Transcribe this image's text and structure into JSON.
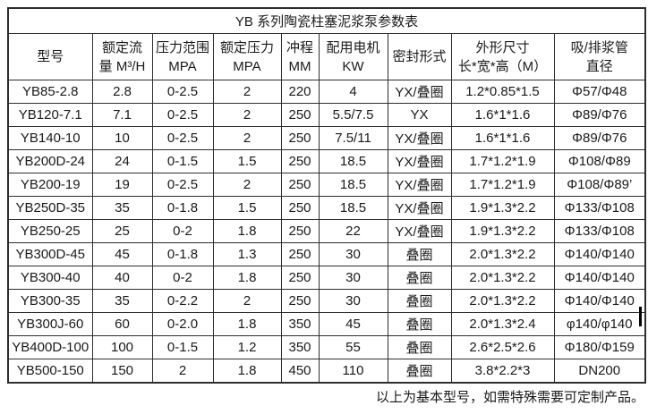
{
  "colors": {
    "border": "#2e2e2e",
    "text": "#1a1a1a",
    "background": "#ffffff"
  },
  "table": {
    "title": "YB 系列陶瓷柱塞泥浆泵参数表",
    "headers": [
      {
        "line1": "型号",
        "line2": ""
      },
      {
        "line1": "额定流",
        "line2": "量 M³/H"
      },
      {
        "line1": "压力范围",
        "line2": "MPA"
      },
      {
        "line1": "额定压力",
        "line2": "MPA"
      },
      {
        "line1": "冲程",
        "line2": "MM"
      },
      {
        "line1": "配用电机",
        "line2": "KW"
      },
      {
        "line1": "密封形式",
        "line2": ""
      },
      {
        "line1": "外形尺寸",
        "line2": "长*宽*高（M）"
      },
      {
        "line1": "吸/排浆管",
        "line2": "直径"
      }
    ],
    "rows": [
      [
        "YB85-2.8",
        "2.8",
        "0-2.5",
        "2",
        "220",
        "4",
        "YX/叠圈",
        "1.2*0.85*1.5",
        "Φ57/Φ48"
      ],
      [
        "YB120-7.1",
        "7.1",
        "0-2.5",
        "2",
        "250",
        "5.5/7.5",
        "YX",
        "1.6*1*1.6",
        "Φ89/Φ76"
      ],
      [
        "YB140-10",
        "10",
        "0-2.5",
        "2",
        "250",
        "7.5/11",
        "YX/叠圈",
        "1.6*1*1.6",
        "Φ89/Φ76"
      ],
      [
        "YB200D-24",
        "24",
        "0-1.5",
        "1.5",
        "250",
        "18.5",
        "YX/叠圈",
        "1.7*1.2*1.9",
        "Φ108/Φ89"
      ],
      [
        "YB200-19",
        "19",
        "0-2.5",
        "2",
        "250",
        "18.5",
        "YX/叠圈",
        "1.7*1.2*1.9",
        "Φ108/Φ89’"
      ],
      [
        "YB250D-35",
        "35",
        "0-1.8",
        "1.5",
        "250",
        "18.5",
        "YX/叠圈",
        "1.9*1.3*2.2",
        "Φ133/Φ108"
      ],
      [
        "YB250-25",
        "25",
        "0-2",
        "1.8",
        "250",
        "22",
        "YX/叠圈",
        "1.9*1.3*2.2",
        "Φ133/Φ108"
      ],
      [
        "YB300D-45",
        "45",
        "0-1.8",
        "1.3",
        "250",
        "30",
        "叠圈",
        "2.0*1.3*2.2",
        "Φ140/Φ140"
      ],
      [
        "YB300-40",
        "40",
        "0-2",
        "1.8",
        "250",
        "30",
        "叠圈",
        "2.0*1.3*2.2",
        "Φ140/Φ140"
      ],
      [
        "YB300-35",
        "35",
        "0-2.2",
        "2",
        "250",
        "30",
        "叠圈",
        "2.0*1.3*2.2",
        "Φ140/Φ140"
      ],
      [
        "YB300J-60",
        "60",
        "0-2.0",
        "1.8",
        "350",
        "45",
        "叠圈",
        "2.0*1.3*2.4",
        "φ140/φ140"
      ],
      [
        "YB400D-100",
        "100",
        "0-1.5",
        "1.2",
        "350",
        "55",
        "叠圈",
        "2.6*2.5*2.6",
        "Φ180/Φ159"
      ],
      [
        "YB500-150",
        "150",
        "2",
        "1.8",
        "450",
        "110",
        "叠圈",
        "3.8*2.2*3",
        "DN200"
      ]
    ],
    "footer": "以上为基本型号，如需特殊需要可定制产品。"
  }
}
